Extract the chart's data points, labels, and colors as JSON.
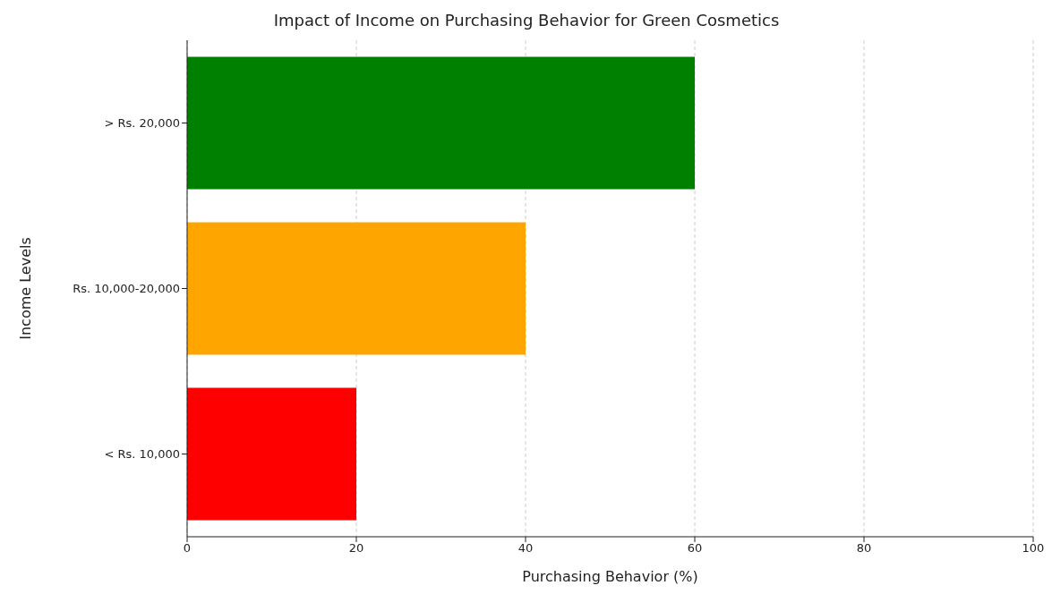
{
  "chart_data": {
    "type": "bar",
    "orientation": "horizontal",
    "title": "Impact of Income on Purchasing Behavior for Green Cosmetics",
    "xlabel": "Purchasing Behavior (%)",
    "ylabel": "Income Levels",
    "categories": [
      "> Rs. 20,000",
      "Rs. 10,000-20,000",
      "< Rs. 10,000"
    ],
    "values": [
      60,
      40,
      20
    ],
    "colors": [
      "#008000",
      "#ffa500",
      "#ff0000"
    ],
    "xlim": [
      0,
      100
    ],
    "xticks": [
      0,
      20,
      40,
      60,
      80,
      100
    ],
    "grid": "x",
    "line_style": "dashed"
  }
}
